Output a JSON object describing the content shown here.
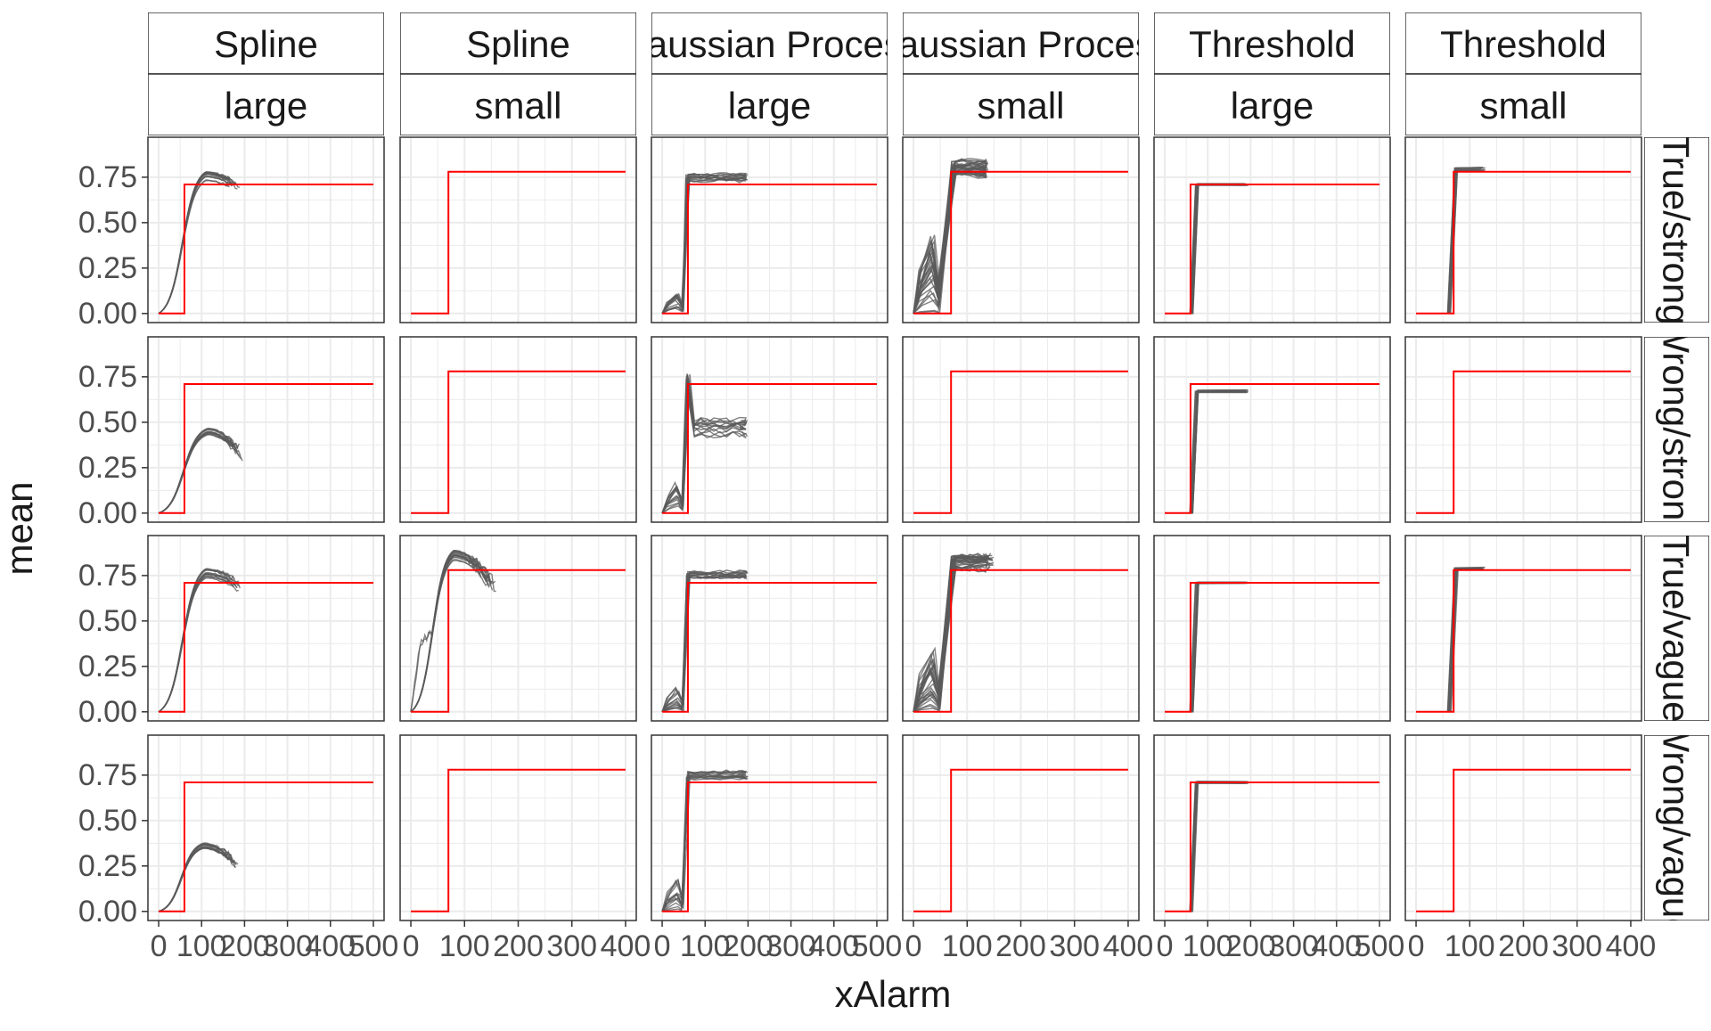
{
  "chart_data": {
    "type": "line",
    "xlabel": "xAlarm",
    "ylabel": "mean",
    "col_strips": [
      {
        "top": "Spline",
        "bottom": "large"
      },
      {
        "top": "Spline",
        "bottom": "small"
      },
      {
        "top": "Gaussian Process",
        "bottom": "large"
      },
      {
        "top": "Gaussian Process",
        "bottom": "small"
      },
      {
        "top": "Threshold",
        "bottom": "large"
      },
      {
        "top": "Threshold",
        "bottom": "small"
      }
    ],
    "row_strips": [
      "True/strong",
      "Wrong/strong",
      "True/vague",
      "Wrong/vague"
    ],
    "y_ticks": [
      0,
      0.25,
      0.5,
      0.75
    ],
    "y_tick_labels": [
      "0.00",
      "0.25",
      "0.50",
      "0.75"
    ],
    "ylim": [
      -0.05,
      0.97
    ],
    "x_axes": [
      {
        "xlim": [
          -25,
          525
        ],
        "ticks": [
          0,
          100,
          200,
          300,
          400,
          500
        ],
        "tick_labels": [
          "0",
          "100",
          "200",
          "300",
          "400",
          "500"
        ]
      },
      {
        "xlim": [
          -20,
          420
        ],
        "ticks": [
          0,
          100,
          200,
          300,
          400
        ],
        "tick_labels": [
          "0",
          "100",
          "200",
          "300",
          "400"
        ]
      }
    ],
    "panel_x_axis": [
      0,
      1,
      0,
      1,
      0,
      1
    ],
    "truth": {
      "large": {
        "change_at": 60,
        "level": 0.71,
        "x_end": 500
      },
      "small": {
        "change_at": 70,
        "level": 0.78,
        "x_end": 400
      }
    },
    "colors": {
      "truth": "#FF0000",
      "sim": "#595959",
      "strip_bg": "#FFFFFF",
      "grid": "#EBEBEB",
      "border": "#333333"
    },
    "sim_bundles": {
      "0-0": {
        "model": "spline",
        "n": 14,
        "start": 0,
        "xmin": 0,
        "peak_x": 110,
        "peak": 0.76,
        "end": 190,
        "end_drop": 0.05,
        "spread": 0.03
      },
      "1-0": {
        "model": "spline",
        "n": 14,
        "start": 0,
        "xmin": 0,
        "peak_x": 115,
        "peak": 0.45,
        "end": 195,
        "end_drop": 0.1,
        "spread": 0.02
      },
      "2-0": {
        "model": "spline",
        "n": 14,
        "start": 0,
        "xmin": 0,
        "peak_x": 110,
        "peak": 0.76,
        "end": 190,
        "end_drop": 0.05,
        "spread": 0.03
      },
      "3-0": {
        "model": "spline",
        "n": 14,
        "start": 0,
        "xmin": 0,
        "peak_x": 105,
        "peak": 0.36,
        "end": 185,
        "end_drop": 0.08,
        "spread": 0.02
      },
      "2-1": {
        "model": "spline",
        "n": 16,
        "start": 0,
        "xmin": 0,
        "peak_x": 80,
        "peak": 0.86,
        "end": 160,
        "end_drop": 0.15,
        "spread": 0.04,
        "bump": 0.3
      },
      "0-2": {
        "model": "gp",
        "n": 14,
        "change_at": 55,
        "level": 0.75,
        "end": 200,
        "early": 0.12,
        "spread": 0.02
      },
      "1-2": {
        "model": "gp",
        "n": 14,
        "change_at": 55,
        "level": 0.47,
        "end": 200,
        "early": 0.2,
        "spread": 0.04,
        "overshoot": 0.73
      },
      "2-2": {
        "model": "gp",
        "n": 14,
        "change_at": 55,
        "level": 0.76,
        "end": 200,
        "early": 0.15,
        "spread": 0.02
      },
      "3-2": {
        "model": "gp",
        "n": 14,
        "change_at": 55,
        "level": 0.75,
        "end": 200,
        "early": 0.18,
        "spread": 0.02
      },
      "0-3": {
        "model": "gp",
        "n": 30,
        "change_at": 70,
        "level": 0.8,
        "end": 140,
        "early": 0.45,
        "spread": 0.04
      },
      "2-3": {
        "model": "gp",
        "n": 30,
        "change_at": 70,
        "level": 0.82,
        "end": 150,
        "early": 0.35,
        "spread": 0.04
      },
      "0-4": {
        "model": "thr",
        "n": 12,
        "change_at": 70,
        "level": 0.71,
        "end": 195,
        "spread": 0.005
      },
      "1-4": {
        "model": "thr",
        "n": 12,
        "change_at": 70,
        "level": 0.67,
        "end": 195,
        "spread": 0.007
      },
      "2-4": {
        "model": "thr",
        "n": 12,
        "change_at": 70,
        "level": 0.71,
        "end": 195,
        "spread": 0.005
      },
      "3-4": {
        "model": "thr",
        "n": 12,
        "change_at": 70,
        "level": 0.71,
        "end": 195,
        "spread": 0.006
      },
      "0-5": {
        "model": "thr",
        "n": 12,
        "change_at": 70,
        "level": 0.79,
        "end": 130,
        "spread": 0.012
      },
      "2-5": {
        "model": "thr",
        "n": 12,
        "change_at": 70,
        "level": 0.785,
        "end": 130,
        "spread": 0.008
      }
    }
  }
}
